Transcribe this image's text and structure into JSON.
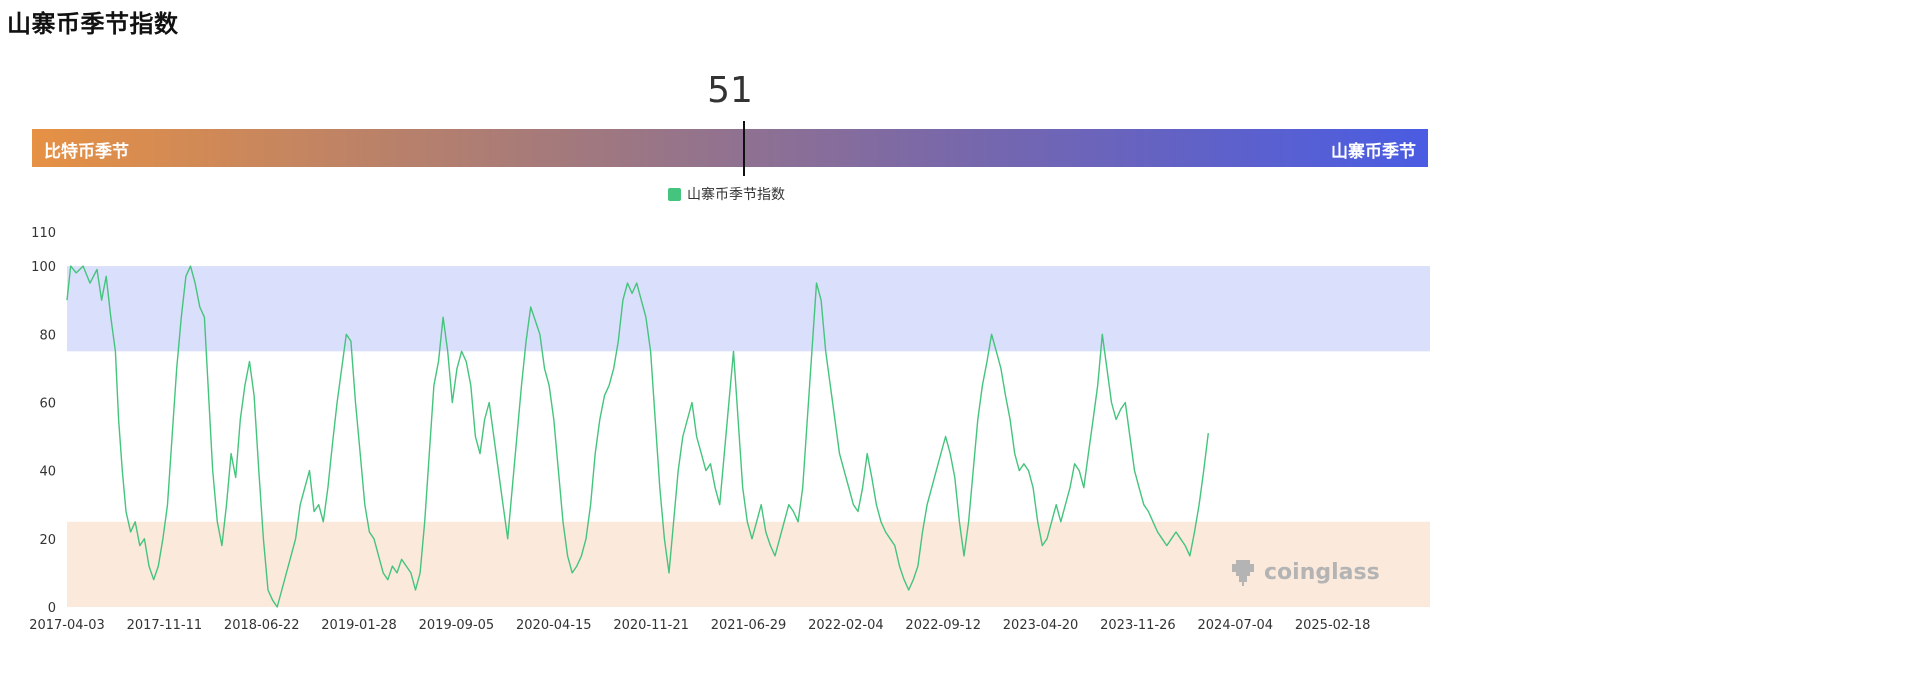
{
  "header": {
    "title": "山寨币季节指数"
  },
  "gauge": {
    "value": "51",
    "value_num": 51,
    "left_label": "比特币季节",
    "right_label": "山寨币季节"
  },
  "legend": {
    "series_name": "山寨币季节指数"
  },
  "watermark": {
    "text": "coinglass"
  },
  "colors": {
    "line": "#44c47c",
    "altcoin_zone": "#dadffb",
    "bitcoin_zone": "#fbe9dc",
    "gradient_start": "#e69144",
    "gradient_end": "#4a5ce3"
  },
  "chart_data": {
    "type": "line",
    "ylim": [
      0,
      110
    ],
    "yticks": [
      "0",
      "20",
      "40",
      "60",
      "80",
      "100",
      "110"
    ],
    "xticks": [
      "2017-04-03",
      "2017-11-11",
      "2018-06-22",
      "2019-01-28",
      "2019-09-05",
      "2020-04-15",
      "2020-11-21",
      "2021-06-29",
      "2022-02-04",
      "2022-09-12",
      "2023-04-20",
      "2023-11-26",
      "2024-07-04",
      "2025-02-18"
    ],
    "xlim_days": [
      0,
      2957
    ],
    "bands": [
      {
        "name": "altcoin-season",
        "from": 75,
        "to": 100
      },
      {
        "name": "bitcoin-season",
        "from": 0,
        "to": 25
      }
    ],
    "series": [
      {
        "values": [
          [
            0,
            90
          ],
          [
            8,
            100
          ],
          [
            20,
            98
          ],
          [
            35,
            100
          ],
          [
            50,
            95
          ],
          [
            65,
            99
          ],
          [
            75,
            90
          ],
          [
            85,
            97
          ],
          [
            95,
            85
          ],
          [
            105,
            75
          ],
          [
            112,
            55
          ],
          [
            120,
            40
          ],
          [
            128,
            28
          ],
          [
            138,
            22
          ],
          [
            148,
            25
          ],
          [
            158,
            18
          ],
          [
            168,
            20
          ],
          [
            178,
            12
          ],
          [
            188,
            8
          ],
          [
            198,
            12
          ],
          [
            208,
            20
          ],
          [
            218,
            30
          ],
          [
            228,
            50
          ],
          [
            238,
            70
          ],
          [
            248,
            85
          ],
          [
            258,
            97
          ],
          [
            268,
            100
          ],
          [
            278,
            95
          ],
          [
            288,
            88
          ],
          [
            298,
            85
          ],
          [
            308,
            60
          ],
          [
            316,
            40
          ],
          [
            326,
            25
          ],
          [
            336,
            18
          ],
          [
            346,
            30
          ],
          [
            356,
            45
          ],
          [
            366,
            38
          ],
          [
            376,
            55
          ],
          [
            386,
            65
          ],
          [
            396,
            72
          ],
          [
            406,
            62
          ],
          [
            416,
            40
          ],
          [
            426,
            20
          ],
          [
            436,
            5
          ],
          [
            446,
            2
          ],
          [
            456,
            0
          ],
          [
            466,
            5
          ],
          [
            476,
            10
          ],
          [
            486,
            15
          ],
          [
            496,
            20
          ],
          [
            506,
            30
          ],
          [
            516,
            35
          ],
          [
            526,
            40
          ],
          [
            536,
            28
          ],
          [
            546,
            30
          ],
          [
            556,
            25
          ],
          [
            566,
            35
          ],
          [
            576,
            48
          ],
          [
            586,
            60
          ],
          [
            596,
            70
          ],
          [
            606,
            80
          ],
          [
            616,
            78
          ],
          [
            626,
            60
          ],
          [
            636,
            45
          ],
          [
            646,
            30
          ],
          [
            656,
            22
          ],
          [
            666,
            20
          ],
          [
            676,
            15
          ],
          [
            686,
            10
          ],
          [
            696,
            8
          ],
          [
            706,
            12
          ],
          [
            716,
            10
          ],
          [
            726,
            14
          ],
          [
            736,
            12
          ],
          [
            746,
            10
          ],
          [
            756,
            5
          ],
          [
            766,
            10
          ],
          [
            776,
            25
          ],
          [
            786,
            45
          ],
          [
            796,
            65
          ],
          [
            806,
            72
          ],
          [
            816,
            85
          ],
          [
            826,
            75
          ],
          [
            836,
            60
          ],
          [
            846,
            70
          ],
          [
            856,
            75
          ],
          [
            866,
            72
          ],
          [
            876,
            65
          ],
          [
            886,
            50
          ],
          [
            896,
            45
          ],
          [
            906,
            55
          ],
          [
            916,
            60
          ],
          [
            926,
            50
          ],
          [
            936,
            40
          ],
          [
            946,
            30
          ],
          [
            956,
            20
          ],
          [
            966,
            35
          ],
          [
            976,
            50
          ],
          [
            986,
            65
          ],
          [
            996,
            78
          ],
          [
            1006,
            88
          ],
          [
            1016,
            84
          ],
          [
            1026,
            80
          ],
          [
            1036,
            70
          ],
          [
            1046,
            65
          ],
          [
            1056,
            55
          ],
          [
            1066,
            40
          ],
          [
            1076,
            25
          ],
          [
            1086,
            15
          ],
          [
            1096,
            10
          ],
          [
            1106,
            12
          ],
          [
            1116,
            15
          ],
          [
            1126,
            20
          ],
          [
            1136,
            30
          ],
          [
            1146,
            45
          ],
          [
            1156,
            55
          ],
          [
            1166,
            62
          ],
          [
            1176,
            65
          ],
          [
            1186,
            70
          ],
          [
            1196,
            78
          ],
          [
            1206,
            90
          ],
          [
            1216,
            95
          ],
          [
            1226,
            92
          ],
          [
            1236,
            95
          ],
          [
            1246,
            90
          ],
          [
            1256,
            85
          ],
          [
            1266,
            75
          ],
          [
            1276,
            55
          ],
          [
            1286,
            35
          ],
          [
            1296,
            20
          ],
          [
            1306,
            10
          ],
          [
            1316,
            25
          ],
          [
            1326,
            40
          ],
          [
            1336,
            50
          ],
          [
            1346,
            55
          ],
          [
            1356,
            60
          ],
          [
            1366,
            50
          ],
          [
            1376,
            45
          ],
          [
            1386,
            40
          ],
          [
            1396,
            42
          ],
          [
            1406,
            35
          ],
          [
            1416,
            30
          ],
          [
            1426,
            45
          ],
          [
            1436,
            60
          ],
          [
            1446,
            75
          ],
          [
            1456,
            55
          ],
          [
            1466,
            35
          ],
          [
            1476,
            25
          ],
          [
            1486,
            20
          ],
          [
            1496,
            25
          ],
          [
            1506,
            30
          ],
          [
            1516,
            22
          ],
          [
            1526,
            18
          ],
          [
            1536,
            15
          ],
          [
            1546,
            20
          ],
          [
            1556,
            25
          ],
          [
            1566,
            30
          ],
          [
            1576,
            28
          ],
          [
            1586,
            25
          ],
          [
            1596,
            35
          ],
          [
            1606,
            55
          ],
          [
            1616,
            75
          ],
          [
            1626,
            95
          ],
          [
            1636,
            90
          ],
          [
            1646,
            75
          ],
          [
            1656,
            65
          ],
          [
            1666,
            55
          ],
          [
            1676,
            45
          ],
          [
            1686,
            40
          ],
          [
            1696,
            35
          ],
          [
            1706,
            30
          ],
          [
            1716,
            28
          ],
          [
            1726,
            35
          ],
          [
            1736,
            45
          ],
          [
            1746,
            38
          ],
          [
            1756,
            30
          ],
          [
            1766,
            25
          ],
          [
            1776,
            22
          ],
          [
            1786,
            20
          ],
          [
            1796,
            18
          ],
          [
            1806,
            12
          ],
          [
            1816,
            8
          ],
          [
            1826,
            5
          ],
          [
            1836,
            8
          ],
          [
            1846,
            12
          ],
          [
            1856,
            22
          ],
          [
            1866,
            30
          ],
          [
            1876,
            35
          ],
          [
            1886,
            40
          ],
          [
            1896,
            45
          ],
          [
            1906,
            50
          ],
          [
            1916,
            45
          ],
          [
            1926,
            38
          ],
          [
            1936,
            25
          ],
          [
            1946,
            15
          ],
          [
            1956,
            25
          ],
          [
            1966,
            40
          ],
          [
            1976,
            55
          ],
          [
            1986,
            65
          ],
          [
            1996,
            72
          ],
          [
            2006,
            80
          ],
          [
            2016,
            75
          ],
          [
            2026,
            70
          ],
          [
            2036,
            62
          ],
          [
            2046,
            55
          ],
          [
            2056,
            45
          ],
          [
            2066,
            40
          ],
          [
            2076,
            42
          ],
          [
            2086,
            40
          ],
          [
            2096,
            35
          ],
          [
            2106,
            25
          ],
          [
            2116,
            18
          ],
          [
            2126,
            20
          ],
          [
            2136,
            25
          ],
          [
            2146,
            30
          ],
          [
            2156,
            25
          ],
          [
            2166,
            30
          ],
          [
            2176,
            35
          ],
          [
            2186,
            42
          ],
          [
            2196,
            40
          ],
          [
            2206,
            35
          ],
          [
            2216,
            45
          ],
          [
            2226,
            55
          ],
          [
            2236,
            65
          ],
          [
            2246,
            80
          ],
          [
            2256,
            70
          ],
          [
            2266,
            60
          ],
          [
            2276,
            55
          ],
          [
            2286,
            58
          ],
          [
            2296,
            60
          ],
          [
            2306,
            50
          ],
          [
            2316,
            40
          ],
          [
            2326,
            35
          ],
          [
            2336,
            30
          ],
          [
            2346,
            28
          ],
          [
            2356,
            25
          ],
          [
            2366,
            22
          ],
          [
            2376,
            20
          ],
          [
            2386,
            18
          ],
          [
            2396,
            20
          ],
          [
            2406,
            22
          ],
          [
            2416,
            20
          ],
          [
            2426,
            18
          ],
          [
            2436,
            15
          ],
          [
            2446,
            22
          ],
          [
            2456,
            30
          ],
          [
            2466,
            40
          ],
          [
            2476,
            51
          ]
        ]
      }
    ]
  }
}
